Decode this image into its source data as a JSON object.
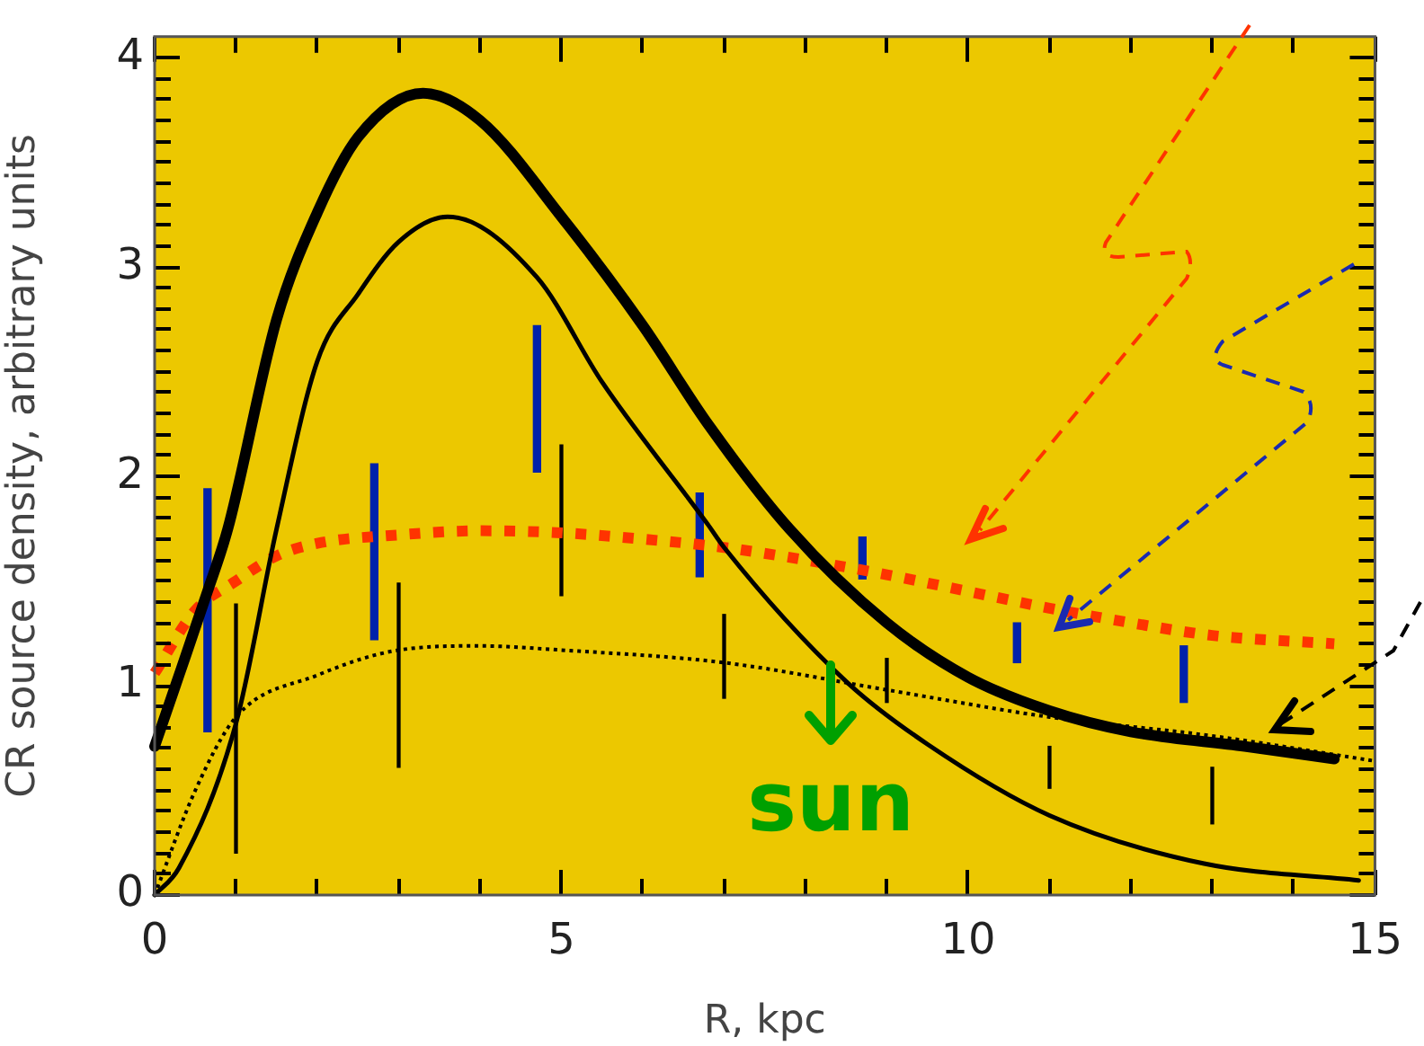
{
  "chart_data": {
    "type": "line",
    "xlabel": "R, kpc",
    "ylabel": "CR source density, arbitrary units",
    "xlim": [
      0,
      15
    ],
    "ylim": [
      0,
      4.1
    ],
    "xticks": [
      0,
      {
        "value": 1,
        "label": null
      },
      {
        "value": 2,
        "label": null
      },
      {
        "value": 3,
        "label": null
      },
      {
        "value": 4,
        "label": null
      },
      5,
      {
        "value": 6,
        "label": null
      },
      {
        "value": 7,
        "label": null
      },
      {
        "value": 8,
        "label": null
      },
      {
        "value": 9,
        "label": null
      },
      10,
      {
        "value": 11,
        "label": null
      },
      {
        "value": 12,
        "label": null
      },
      {
        "value": 13,
        "label": null
      },
      {
        "value": 14,
        "label": null
      },
      15
    ],
    "yticks": [
      0,
      {
        "value": 0.1,
        "label": null
      },
      {
        "value": 0.2,
        "label": null
      },
      {
        "value": 0.3,
        "label": null
      },
      {
        "value": 0.4,
        "label": null
      },
      {
        "value": 0.5,
        "label": null
      },
      {
        "value": 0.6,
        "label": null
      },
      {
        "value": 0.7,
        "label": null
      },
      {
        "value": 0.8,
        "label": null
      },
      {
        "value": 0.9,
        "label": null
      },
      1,
      {
        "value": 1.1,
        "label": null
      },
      {
        "value": 1.2,
        "label": null
      },
      {
        "value": 1.3,
        "label": null
      },
      {
        "value": 1.4,
        "label": null
      },
      {
        "value": 1.5,
        "label": null
      },
      {
        "value": 1.6,
        "label": null
      },
      {
        "value": 1.7,
        "label": null
      },
      {
        "value": 1.8,
        "label": null
      },
      {
        "value": 1.9,
        "label": null
      },
      2,
      {
        "value": 2.1,
        "label": null
      },
      {
        "value": 2.2,
        "label": null
      },
      {
        "value": 2.3,
        "label": null
      },
      {
        "value": 2.4,
        "label": null
      },
      {
        "value": 2.5,
        "label": null
      },
      {
        "value": 2.6,
        "label": null
      },
      {
        "value": 2.7,
        "label": null
      },
      {
        "value": 2.8,
        "label": null
      },
      {
        "value": 2.9,
        "label": null
      },
      3,
      {
        "value": 3.1,
        "label": null
      },
      {
        "value": 3.2,
        "label": null
      },
      {
        "value": 3.3,
        "label": null
      },
      {
        "value": 3.4,
        "label": null
      },
      {
        "value": 3.5,
        "label": null
      },
      {
        "value": 3.6,
        "label": null
      },
      {
        "value": 3.7,
        "label": null
      },
      {
        "value": 3.8,
        "label": null
      },
      {
        "value": 3.9,
        "label": null
      },
      4
    ],
    "grid": false,
    "legend": false,
    "marker": "none",
    "series": [
      {
        "color": "#000000",
        "line_style": "solid",
        "x": [
          0,
          0.3,
          0.65,
          0.9,
          1.5,
          2,
          2.5,
          3.3,
          4,
          5,
          6,
          6.8,
          7.8,
          9,
          10,
          11,
          12,
          13.4,
          14.5
        ],
        "values": [
          0.71,
          1.05,
          1.45,
          1.75,
          2.75,
          3.26,
          3.62,
          3.83,
          3.7,
          3.24,
          2.72,
          2.25,
          1.75,
          1.3,
          1.04,
          0.88,
          0.78,
          0.71,
          0.65
        ]
      },
      {
        "color": "#000000",
        "line_style": "solid",
        "x": [
          0,
          0.3,
          1,
          1.5,
          2,
          2.5,
          3,
          3.6,
          4.7,
          5.5,
          6.8,
          7,
          8.5,
          9.5,
          11,
          12.9,
          14.8
        ],
        "values": [
          0,
          0.13,
          0.82,
          1.75,
          2.55,
          2.87,
          3.12,
          3.24,
          2.95,
          2.45,
          1.77,
          1.66,
          1.02,
          0.72,
          0.38,
          0.15,
          0.07
        ]
      },
      {
        "color": "#000000",
        "line_style": "dotted",
        "x": [
          0,
          0.5,
          1,
          2,
          3,
          4,
          5,
          7,
          9,
          11,
          13,
          15
        ],
        "values": [
          0,
          0.5,
          0.85,
          1.05,
          1.17,
          1.19,
          1.17,
          1.11,
          0.98,
          0.85,
          0.76,
          0.64
        ]
      },
      {
        "color": "#ff3300",
        "line_style": "dotted",
        "x": [
          0,
          0.5,
          1,
          1.5,
          2,
          3,
          4,
          5,
          6,
          7,
          8,
          9,
          10,
          11,
          12,
          13,
          14.5
        ],
        "values": [
          1.06,
          1.36,
          1.5,
          1.62,
          1.68,
          1.72,
          1.74,
          1.73,
          1.7,
          1.66,
          1.6,
          1.53,
          1.45,
          1.37,
          1.3,
          1.24,
          1.2
        ]
      },
      {
        "type": "bar",
        "color": "#0022aa",
        "x": [
          0.65,
          2.7,
          4.7,
          6.7,
          8.7,
          10.6,
          12.65
        ],
        "base": [
          0.78,
          1.22,
          2.02,
          1.52,
          1.51,
          1.11,
          0.92
        ],
        "values": [
          1.16,
          0.84,
          0.7,
          0.4,
          0.2,
          0.19,
          0.27
        ]
      },
      {
        "type": "bar",
        "color": "#000000",
        "x": [
          1,
          3,
          5,
          7,
          9,
          11,
          13
        ],
        "base": [
          0.2,
          0.61,
          1.43,
          0.94,
          0.92,
          0.51,
          0.34
        ],
        "values": [
          1.19,
          0.88,
          0.72,
          0.4,
          0.21,
          0.2,
          0.27
        ]
      }
    ],
    "annotations": [
      "sun"
    ]
  }
}
